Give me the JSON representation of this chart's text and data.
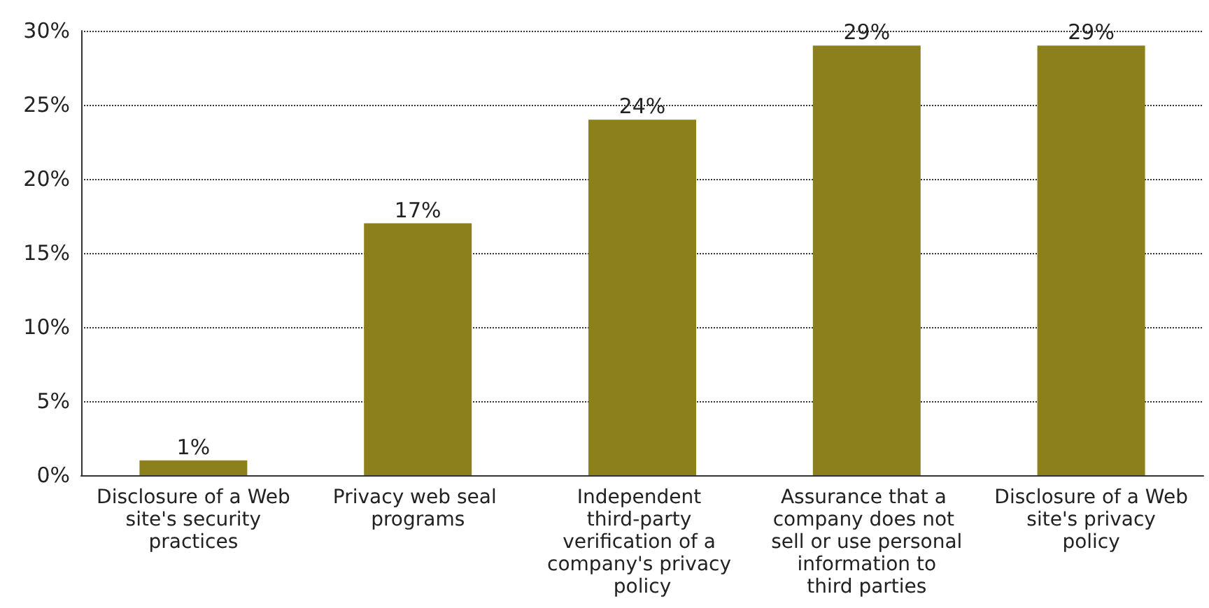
{
  "chart_data": {
    "type": "bar",
    "categories": [
      "Disclosure of a Web site's security practices",
      "Privacy web seal programs",
      "Independent third-party verification of a company's privacy policy",
      "Assurance that a company does not sell or use personal information to third parties",
      "Disclosure of a Web site's privacy policy"
    ],
    "values": [
      1,
      17,
      24,
      29,
      29
    ],
    "value_labels": [
      "1%",
      "17%",
      "24%",
      "29%",
      "29%"
    ],
    "color": "#8b801b",
    "ylim": [
      0,
      30
    ],
    "yticks": [
      {
        "value": 0,
        "label": "0%"
      },
      {
        "value": 5,
        "label": "5%"
      },
      {
        "value": 10,
        "label": "10%"
      },
      {
        "value": 15,
        "label": "15%"
      },
      {
        "value": 20,
        "label": "20%"
      },
      {
        "value": 25,
        "label": "25%"
      },
      {
        "value": 30,
        "label": "30%"
      }
    ],
    "grid": "y"
  }
}
